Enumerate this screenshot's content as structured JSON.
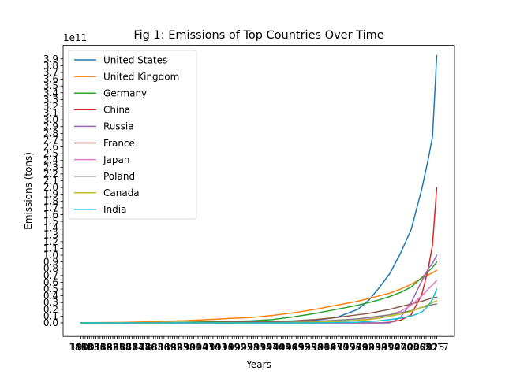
{
  "chart_data": {
    "type": "line",
    "title": "Fig 1: Emissions of Top Countries Over Time",
    "xlabel": "Years",
    "ylabel": "Emissions (tons)",
    "y_offset_label": "1e11",
    "y_scale_factor": 100000000000.0,
    "ylim": [
      -0.2,
      4.1
    ],
    "y_tick_step": 0.1,
    "y_tick_max": 3.9,
    "x_tick_sample_labels": [
      "1900",
      "2017"
    ],
    "xlim": [
      1850,
      2017
    ],
    "grid": false,
    "legend_placement": "upper-left",
    "x": [
      1850,
      1860,
      1870,
      1880,
      1890,
      1900,
      1910,
      1920,
      1930,
      1940,
      1950,
      1960,
      1970,
      1980,
      1985,
      1990,
      1995,
      2000,
      2005,
      2010,
      2013,
      2015,
      2017
    ],
    "series": [
      {
        "name": "United States",
        "color": "#1f77b4",
        "values": [
          0,
          0,
          0,
          0,
          0,
          0,
          0,
          0,
          0.005,
          0.01,
          0.02,
          0.04,
          0.08,
          0.2,
          0.33,
          0.52,
          0.73,
          1.03,
          1.38,
          1.98,
          2.42,
          2.75,
          3.95
        ]
      },
      {
        "name": "United Kingdom",
        "color": "#ff7f0e",
        "values": [
          0.002,
          0.004,
          0.008,
          0.015,
          0.025,
          0.035,
          0.05,
          0.065,
          0.08,
          0.11,
          0.15,
          0.2,
          0.26,
          0.32,
          0.36,
          0.4,
          0.44,
          0.5,
          0.57,
          0.66,
          0.71,
          0.74,
          0.78
        ]
      },
      {
        "name": "Germany",
        "color": "#2ca02c",
        "values": [
          0,
          0,
          0,
          0.003,
          0.006,
          0.01,
          0.015,
          0.02,
          0.03,
          0.05,
          0.09,
          0.14,
          0.2,
          0.26,
          0.3,
          0.34,
          0.39,
          0.45,
          0.53,
          0.67,
          0.76,
          0.82,
          0.9
        ]
      },
      {
        "name": "China",
        "color": "#d62728",
        "values": [
          0,
          0,
          0,
          0,
          0,
          0,
          0,
          0,
          0,
          0,
          0,
          0,
          0,
          0,
          0,
          0,
          0.01,
          0.04,
          0.12,
          0.42,
          0.8,
          1.15,
          2.0
        ]
      },
      {
        "name": "Russia",
        "color": "#9467bd",
        "values": [
          0,
          0,
          0,
          0,
          0,
          0,
          0,
          0,
          0,
          0,
          0,
          0,
          0,
          0,
          0,
          0,
          0,
          0.08,
          0.3,
          0.62,
          0.8,
          0.88,
          1.0
        ]
      },
      {
        "name": "France",
        "color": "#8c564b",
        "values": [
          0,
          0,
          0,
          0,
          0.002,
          0.004,
          0.007,
          0.011,
          0.015,
          0.02,
          0.03,
          0.05,
          0.08,
          0.12,
          0.14,
          0.17,
          0.2,
          0.24,
          0.28,
          0.32,
          0.35,
          0.37,
          0.38
        ]
      },
      {
        "name": "Japan",
        "color": "#e377c2",
        "values": [
          0,
          0,
          0,
          0,
          0,
          0,
          0,
          0,
          0,
          0,
          0,
          0.005,
          0.015,
          0.04,
          0.06,
          0.09,
          0.12,
          0.17,
          0.26,
          0.4,
          0.5,
          0.56,
          0.63
        ]
      },
      {
        "name": "Poland",
        "color": "#7f7f7f",
        "values": [
          0,
          0,
          0,
          0,
          0,
          0,
          0,
          0,
          0.005,
          0.008,
          0.015,
          0.025,
          0.04,
          0.06,
          0.08,
          0.1,
          0.12,
          0.15,
          0.18,
          0.23,
          0.25,
          0.27,
          0.28
        ]
      },
      {
        "name": "Canada",
        "color": "#bcbd22",
        "values": [
          0,
          0,
          0,
          0,
          0,
          0,
          0,
          0,
          0,
          0,
          0.005,
          0.01,
          0.02,
          0.04,
          0.05,
          0.07,
          0.1,
          0.13,
          0.17,
          0.23,
          0.27,
          0.3,
          0.33
        ]
      },
      {
        "name": "India",
        "color": "#17becf",
        "values": [
          0,
          0,
          0,
          0,
          0,
          0,
          0,
          0,
          0,
          0,
          0,
          0,
          0.005,
          0.01,
          0.02,
          0.03,
          0.05,
          0.07,
          0.1,
          0.16,
          0.25,
          0.35,
          0.5
        ]
      }
    ]
  }
}
